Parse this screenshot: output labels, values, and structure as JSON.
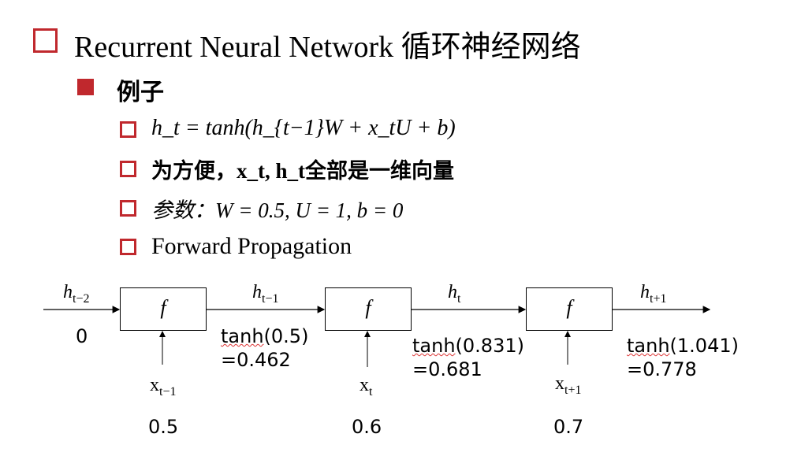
{
  "title": "Recurrent Neural Network 循环神经网络",
  "section": "例子",
  "bullets": [
    "h_t = tanh(h_{t−1}W + x_tU + b)",
    "为方便，x_t, h_t全部是一维向量",
    "参数：W = 0.5, U = 1, b = 0",
    "Forward Propagation"
  ],
  "diagram": {
    "box_label": "f",
    "h_labels": [
      {
        "base": "h",
        "sub": "t−2"
      },
      {
        "base": "h",
        "sub": "t−1"
      },
      {
        "base": "h",
        "sub": "t"
      },
      {
        "base": "h",
        "sub": "t+1"
      }
    ],
    "h0": "0",
    "outputs": [
      {
        "expr": "tanh",
        "arg": "(0.5)",
        "val": "=0.462"
      },
      {
        "expr": "tanh",
        "arg": "(0.831)",
        "val": "=0.681"
      },
      {
        "expr": "tanh",
        "arg": "(1.041)",
        "val": "=0.778"
      }
    ],
    "x_labels": [
      {
        "base": "x",
        "sub": "t−1"
      },
      {
        "base": "x",
        "sub": "t"
      },
      {
        "base": "x",
        "sub": "t+1"
      }
    ],
    "x_values": [
      "0.5",
      "0.6",
      "0.7"
    ]
  },
  "colors": {
    "accent": "#c0282d"
  }
}
